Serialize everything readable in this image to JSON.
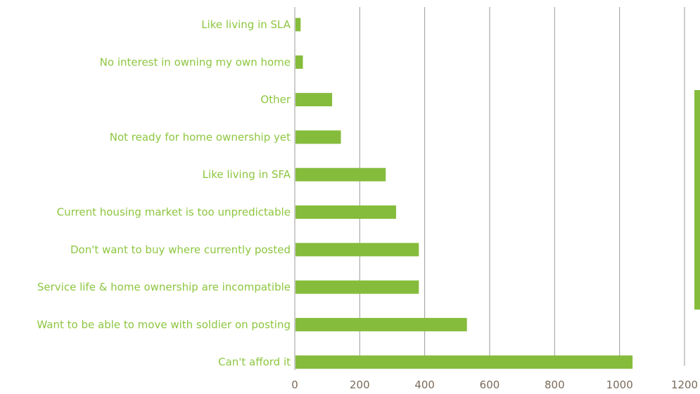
{
  "chart_data": {
    "type": "bar",
    "orientation": "horizontal",
    "categories": [
      "Like living in SLA",
      "No interest in owning my own home",
      "Other",
      "Not ready for home ownership yet",
      "Like living in SFA",
      "Current housing market is too unpredictable",
      "Don't want to buy where currently posted",
      "Service life & home ownership are incompatible",
      "Want to be able to move with soldier on posting",
      "Can't afford it"
    ],
    "values": [
      18,
      25,
      115,
      142,
      280,
      312,
      382,
      382,
      530,
      1040
    ],
    "xlim": [
      0,
      1200
    ],
    "x_ticks": [
      "0",
      "200",
      "400",
      "600",
      "800",
      "1000",
      "1200"
    ],
    "grid": "vertical",
    "legend": "right",
    "colors": {
      "bar": "#86bc3c",
      "label": "#8dc63f",
      "tick": "#7a6a5a",
      "grid": "#9a9a9a"
    }
  }
}
